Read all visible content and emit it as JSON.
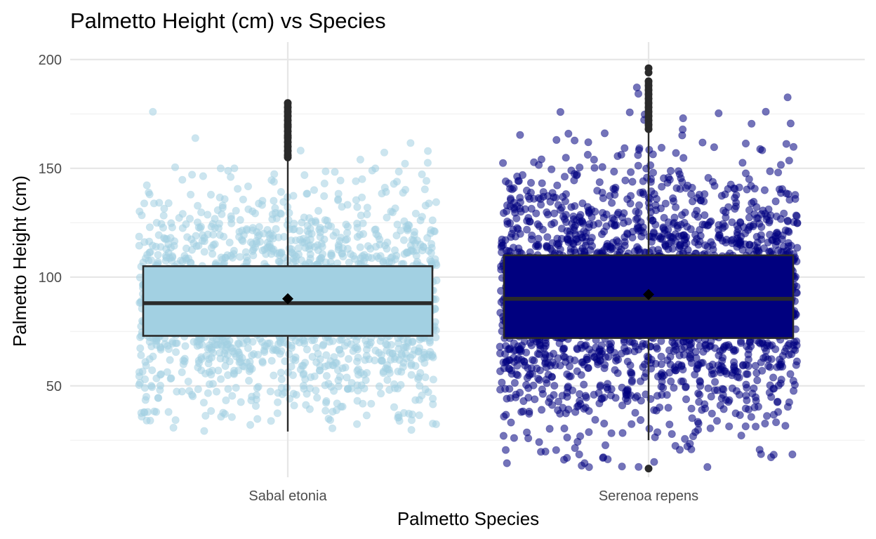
{
  "chart_data": {
    "type": "box",
    "title": "Palmetto Height (cm) vs Species",
    "xlabel": "Palmetto Species",
    "ylabel": "Palmetto Height (cm)",
    "categories": [
      "Sabal etonia",
      "Serenoa repens"
    ],
    "yticks": [
      50,
      100,
      150,
      200
    ],
    "ylim": [
      8,
      208
    ],
    "grid": true,
    "legend": "none",
    "colors": {
      "Sabal etonia": "#a2d0e2",
      "Serenoa repens": "#00007f",
      "box_outline": "#2a2a2a",
      "grid": "#e6e6e6"
    },
    "boxes": [
      {
        "category": "Sabal etonia",
        "min": 29,
        "q1": 73,
        "median": 88,
        "q3": 105,
        "max": 154,
        "mean": 90,
        "jitter_count": 1800,
        "jitter_range": [
          29,
          180
        ],
        "outliers": [
          155,
          156,
          158,
          160,
          162,
          164,
          165,
          167,
          169,
          170,
          172,
          174,
          176,
          178,
          180
        ]
      },
      {
        "category": "Serenoa repens",
        "min": 25,
        "q1": 72,
        "median": 90,
        "q3": 110,
        "max": 167,
        "mean": 92,
        "jitter_count": 2400,
        "jitter_range": [
          12,
          196
        ],
        "outliers": [
          12,
          168,
          170,
          172,
          174,
          176,
          178,
          180,
          182,
          184,
          186,
          188,
          190,
          194,
          196
        ]
      }
    ]
  }
}
